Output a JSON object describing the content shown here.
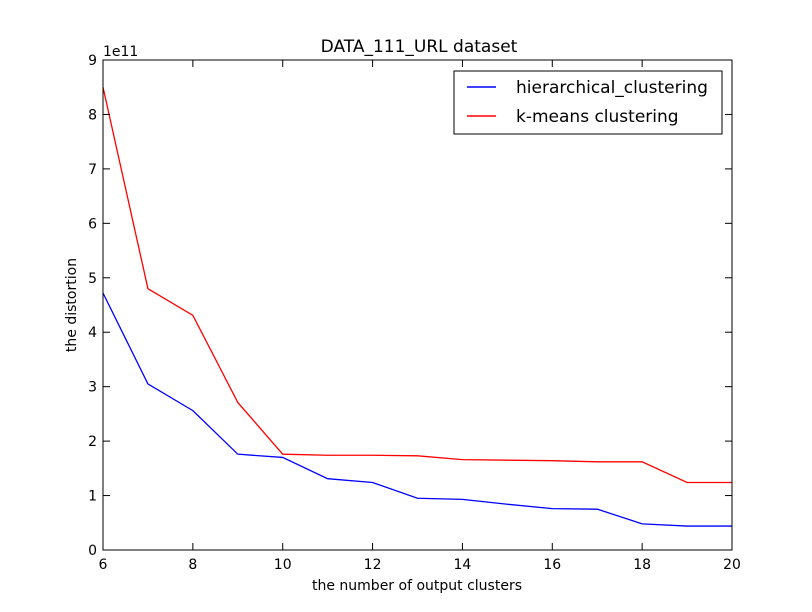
{
  "chart_data": {
    "type": "line",
    "title": "DATA_111_URL dataset",
    "xlabel": "the number of output clusters",
    "ylabel": "the distortion",
    "y_offset_label": "1e11",
    "xlim": [
      6,
      20
    ],
    "ylim": [
      0,
      9
    ],
    "x_ticks": [
      6,
      8,
      10,
      12,
      14,
      16,
      18,
      20
    ],
    "x_tick_labels": [
      "6",
      "8",
      "10",
      "12",
      "14",
      "16",
      "18",
      "20"
    ],
    "y_ticks": [
      0,
      1,
      2,
      3,
      4,
      5,
      6,
      7,
      8,
      9
    ],
    "y_tick_labels": [
      "0",
      "1",
      "2",
      "3",
      "4",
      "5",
      "6",
      "7",
      "8",
      "9"
    ],
    "grid": false,
    "legend_position": "top-right",
    "x": [
      6,
      7,
      8,
      9,
      10,
      11,
      12,
      13,
      14,
      15,
      16,
      17,
      18,
      19,
      20
    ],
    "series": [
      {
        "name": "hierarchical_clustering",
        "color": "#0000ff",
        "values": [
          4.72,
          3.05,
          2.56,
          1.76,
          1.7,
          1.31,
          1.24,
          0.95,
          0.93,
          0.84,
          0.76,
          0.75,
          0.48,
          0.44,
          0.44
        ]
      },
      {
        "name": "k-means clustering",
        "color": "#ff0000",
        "values": [
          8.5,
          4.8,
          4.31,
          2.71,
          1.76,
          1.74,
          1.74,
          1.73,
          1.66,
          1.65,
          1.64,
          1.62,
          1.62,
          1.24,
          1.24
        ]
      }
    ]
  }
}
